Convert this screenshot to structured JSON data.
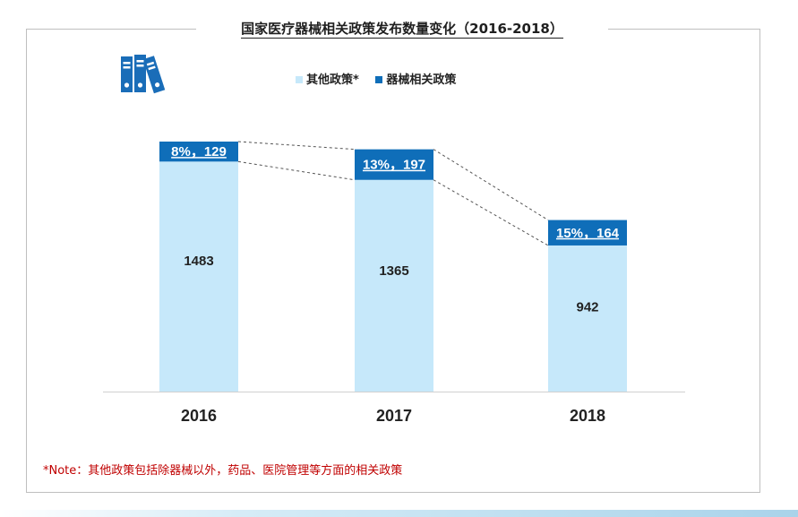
{
  "title": "国家医疗器械相关政策发布数量变化（2016-2018）",
  "note": "*Note：其他政策包括除器械以外，药品、医院管理等方面的相关政策",
  "icon": "binders-icon",
  "colors": {
    "other": "#c6e8fa",
    "device": "#0f6eb9",
    "frame": "#bfbfbf",
    "note": "#c00000"
  },
  "legend": {
    "other": "其他政策*",
    "device": "器械相关政策"
  },
  "chart_data": {
    "type": "bar",
    "stacked": true,
    "categories": [
      "2016",
      "2017",
      "2018"
    ],
    "series": [
      {
        "name": "其他政策*",
        "values": [
          1483,
          1365,
          942
        ]
      },
      {
        "name": "器械相关政策",
        "values": [
          129,
          197,
          164
        ]
      }
    ],
    "device_labels": [
      "8%，129",
      "13%，197",
      "15%，164"
    ],
    "connector_lines": "dashed",
    "legend_position": "top",
    "grid": false
  }
}
